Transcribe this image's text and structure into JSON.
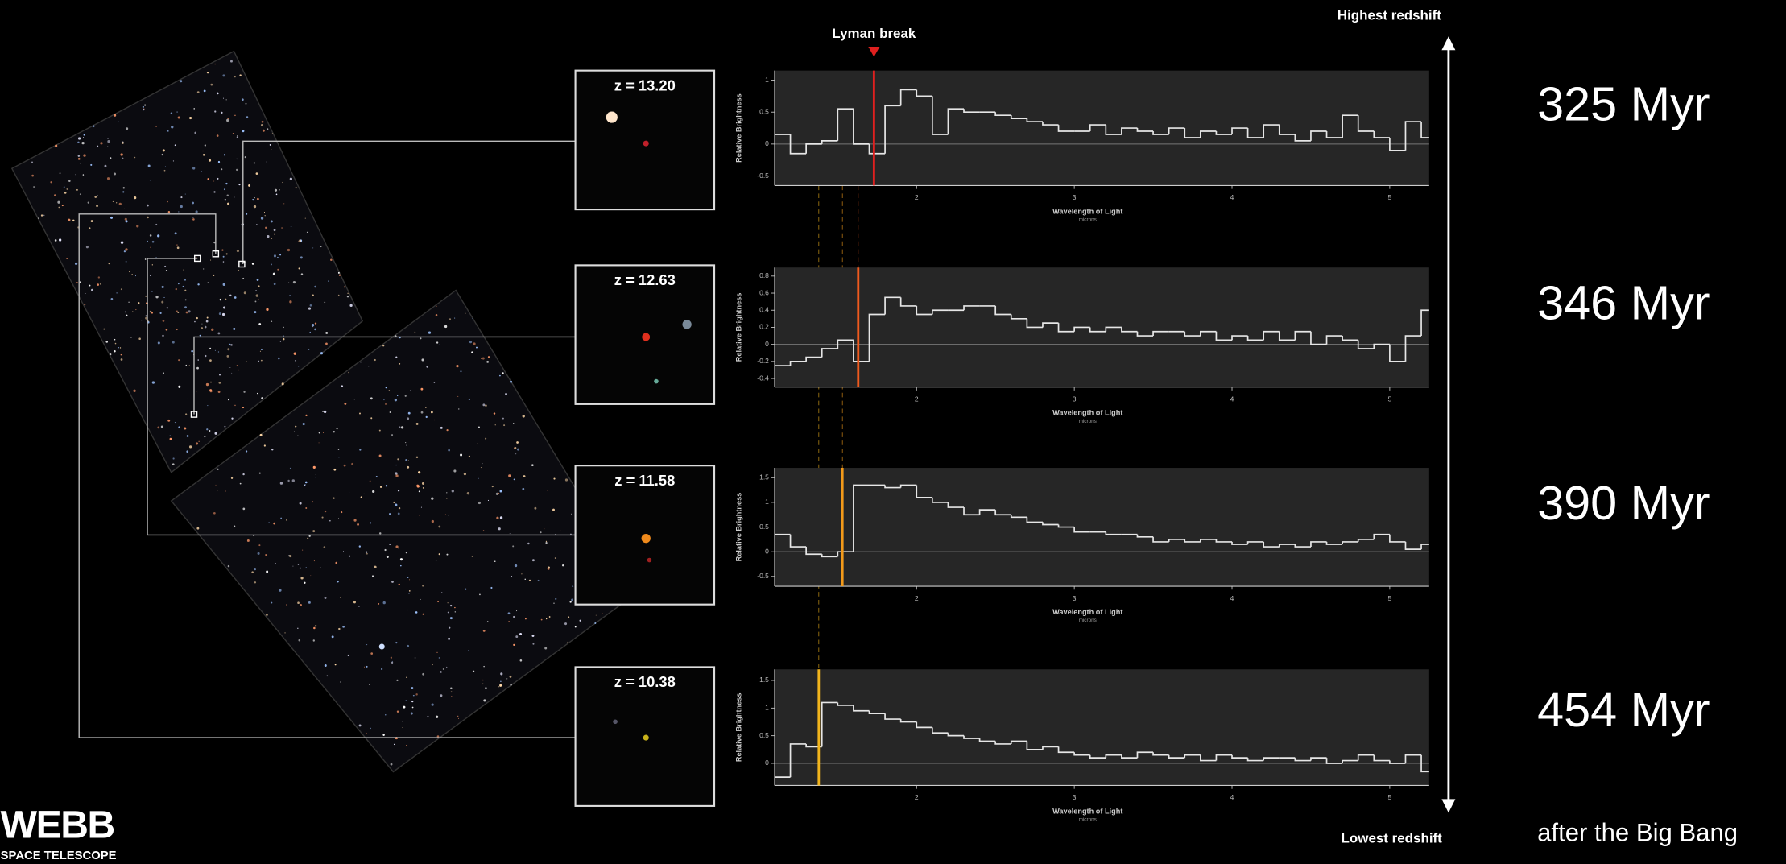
{
  "top_label": "Highest redshift",
  "bottom_label": "Lowest redshift",
  "age_note": "after the Big Bang",
  "logo": {
    "name": "WEBB",
    "subtitle": "SPACE TELESCOPE"
  },
  "chart_data": [
    {
      "type": "line",
      "inset_label": "z = 13.20",
      "annotation": "325 Myr",
      "break_label": "Lyman break",
      "lyman_break_x": 1.73,
      "break_color": "#e0201f",
      "color": "#e6e6e6",
      "x_label": "Wavelength of Light",
      "x_unit_label": "microns",
      "y_label": "Relative Brightness",
      "xlim": [
        1.1,
        5.25
      ],
      "xticks": [
        2,
        3,
        4,
        5
      ],
      "ylim": [
        -0.65,
        1.15
      ],
      "yticks": [
        -0.5,
        0,
        0.5,
        1
      ],
      "x": [
        1.1,
        1.2,
        1.3,
        1.4,
        1.5,
        1.6,
        1.7,
        1.8,
        1.9,
        2.0,
        2.1,
        2.2,
        2.3,
        2.4,
        2.5,
        2.6,
        2.7,
        2.8,
        2.9,
        3.0,
        3.1,
        3.2,
        3.3,
        3.4,
        3.5,
        3.6,
        3.7,
        3.8,
        3.9,
        4.0,
        4.1,
        4.2,
        4.3,
        4.4,
        4.5,
        4.6,
        4.7,
        4.8,
        4.9,
        5.0,
        5.1,
        5.2
      ],
      "values": [
        0.15,
        -0.15,
        0.0,
        0.05,
        0.55,
        0.0,
        -0.15,
        0.6,
        0.85,
        0.75,
        0.15,
        0.55,
        0.5,
        0.5,
        0.45,
        0.4,
        0.35,
        0.3,
        0.2,
        0.2,
        0.3,
        0.15,
        0.25,
        0.2,
        0.15,
        0.25,
        0.1,
        0.2,
        0.15,
        0.25,
        0.1,
        0.3,
        0.15,
        0.05,
        0.2,
        0.1,
        0.45,
        0.2,
        0.1,
        -0.1,
        0.35,
        0.1
      ]
    },
    {
      "type": "line",
      "inset_label": "z = 12.63",
      "annotation": "346 Myr",
      "lyman_break_x": 1.63,
      "break_color": "#f05a1e",
      "color": "#e6e6e6",
      "x_label": "Wavelength of Light",
      "x_unit_label": "microns",
      "y_label": "Relative Brightness",
      "xlim": [
        1.1,
        5.25
      ],
      "xticks": [
        2,
        3,
        4,
        5
      ],
      "ylim": [
        -0.5,
        0.9
      ],
      "yticks": [
        -0.4,
        -0.2,
        0,
        0.2,
        0.4,
        0.6,
        0.8
      ],
      "x": [
        1.1,
        1.2,
        1.3,
        1.4,
        1.5,
        1.6,
        1.7,
        1.8,
        1.9,
        2.0,
        2.1,
        2.2,
        2.3,
        2.4,
        2.5,
        2.6,
        2.7,
        2.8,
        2.9,
        3.0,
        3.1,
        3.2,
        3.3,
        3.4,
        3.5,
        3.6,
        3.7,
        3.8,
        3.9,
        4.0,
        4.1,
        4.2,
        4.3,
        4.4,
        4.5,
        4.6,
        4.7,
        4.8,
        4.9,
        5.0,
        5.1,
        5.2
      ],
      "values": [
        -0.25,
        -0.2,
        -0.15,
        -0.05,
        0.05,
        -0.2,
        0.35,
        0.55,
        0.45,
        0.35,
        0.4,
        0.4,
        0.45,
        0.45,
        0.35,
        0.3,
        0.2,
        0.25,
        0.15,
        0.2,
        0.15,
        0.2,
        0.15,
        0.1,
        0.15,
        0.15,
        0.1,
        0.15,
        0.05,
        0.1,
        0.05,
        0.15,
        0.05,
        0.15,
        0.0,
        0.1,
        0.05,
        -0.05,
        0.0,
        -0.2,
        0.1,
        0.4
      ]
    },
    {
      "type": "line",
      "inset_label": "z = 11.58",
      "annotation": "390 Myr",
      "lyman_break_x": 1.53,
      "break_color": "#f39a1a",
      "color": "#e6e6e6",
      "x_label": "Wavelength of Light",
      "x_unit_label": "microns",
      "y_label": "Relative Brightness",
      "xlim": [
        1.1,
        5.25
      ],
      "xticks": [
        2,
        3,
        4,
        5
      ],
      "ylim": [
        -0.7,
        1.7
      ],
      "yticks": [
        -0.5,
        0,
        0.5,
        1,
        1.5
      ],
      "x": [
        1.1,
        1.2,
        1.3,
        1.4,
        1.5,
        1.6,
        1.7,
        1.8,
        1.9,
        2.0,
        2.1,
        2.2,
        2.3,
        2.4,
        2.5,
        2.6,
        2.7,
        2.8,
        2.9,
        3.0,
        3.1,
        3.2,
        3.3,
        3.4,
        3.5,
        3.6,
        3.7,
        3.8,
        3.9,
        4.0,
        4.1,
        4.2,
        4.3,
        4.4,
        4.5,
        4.6,
        4.7,
        4.8,
        4.9,
        5.0,
        5.1,
        5.2
      ],
      "values": [
        0.35,
        0.1,
        -0.05,
        -0.1,
        0.0,
        1.35,
        1.35,
        1.3,
        1.35,
        1.1,
        1.0,
        0.9,
        0.75,
        0.85,
        0.75,
        0.7,
        0.6,
        0.55,
        0.5,
        0.4,
        0.4,
        0.35,
        0.35,
        0.3,
        0.2,
        0.25,
        0.2,
        0.25,
        0.2,
        0.15,
        0.2,
        0.1,
        0.15,
        0.1,
        0.2,
        0.15,
        0.2,
        0.25,
        0.35,
        0.2,
        0.05,
        0.15
      ]
    },
    {
      "type": "line",
      "inset_label": "z = 10.38",
      "annotation": "454 Myr",
      "lyman_break_x": 1.38,
      "break_color": "#f2b51c",
      "color": "#e6e6e6",
      "x_label": "Wavelength of Light",
      "x_unit_label": "microns",
      "y_label": "Relative Brightness",
      "xlim": [
        1.1,
        5.25
      ],
      "xticks": [
        2,
        3,
        4,
        5
      ],
      "ylim": [
        -0.4,
        1.7
      ],
      "yticks": [
        0,
        0.5,
        1,
        1.5
      ],
      "x": [
        1.1,
        1.2,
        1.3,
        1.4,
        1.5,
        1.6,
        1.7,
        1.8,
        1.9,
        2.0,
        2.1,
        2.2,
        2.3,
        2.4,
        2.5,
        2.6,
        2.7,
        2.8,
        2.9,
        3.0,
        3.1,
        3.2,
        3.3,
        3.4,
        3.5,
        3.6,
        3.7,
        3.8,
        3.9,
        4.0,
        4.1,
        4.2,
        4.3,
        4.4,
        4.5,
        4.6,
        4.7,
        4.8,
        4.9,
        5.0,
        5.1,
        5.2
      ],
      "values": [
        -0.25,
        0.35,
        0.3,
        1.1,
        1.05,
        0.95,
        0.9,
        0.8,
        0.75,
        0.65,
        0.55,
        0.5,
        0.45,
        0.4,
        0.35,
        0.4,
        0.25,
        0.3,
        0.2,
        0.15,
        0.1,
        0.15,
        0.1,
        0.2,
        0.15,
        0.1,
        0.15,
        0.05,
        0.15,
        0.1,
        0.05,
        0.1,
        0.1,
        0.05,
        0.1,
        0.0,
        0.05,
        0.15,
        0.05,
        0.0,
        0.15,
        -0.15
      ]
    }
  ]
}
